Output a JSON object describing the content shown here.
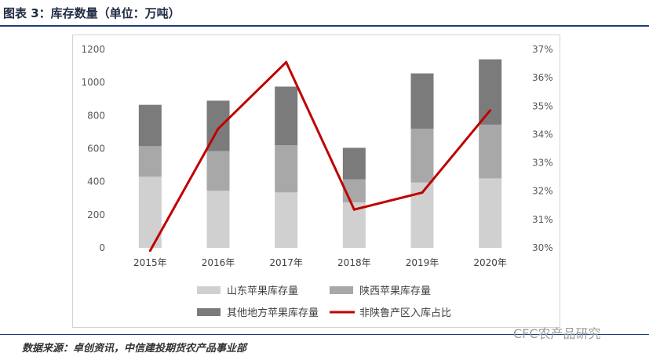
{
  "header": {
    "title": "图表 3：库存数量（单位：万吨）"
  },
  "footer": {
    "source": "数据来源：卓创资讯，中信建投期货农产品事业部",
    "watermark": "CFC农产品研究"
  },
  "colors": {
    "shandong": "#d0d0d0",
    "shaanxi": "#a8a8a8",
    "other": "#7b7b7b",
    "ratio": "#c00000"
  },
  "chart_data": {
    "type": "bar",
    "stacked": true,
    "categories": [
      "2015年",
      "2016年",
      "2017年",
      "2018年",
      "2019年",
      "2020年"
    ],
    "series": [
      {
        "name": "山东苹果库存量",
        "values": [
          430,
          345,
          335,
          275,
          395,
          420
        ]
      },
      {
        "name": "陕西苹果库存量",
        "values": [
          185,
          240,
          285,
          140,
          325,
          325
        ]
      },
      {
        "name": "其他地方苹果库存量",
        "values": [
          250,
          305,
          355,
          190,
          335,
          395
        ]
      }
    ],
    "line_series": {
      "name": "非陕鲁产区入库占比",
      "axis": "right",
      "values": [
        29.9,
        34.2,
        36.55,
        31.35,
        31.95,
        34.85
      ]
    },
    "ylim": [
      0,
      1200
    ],
    "yticks": [
      "0",
      "200",
      "400",
      "600",
      "800",
      "1000",
      "1200"
    ],
    "y2lim": [
      30,
      37
    ],
    "y2ticks": [
      "30%",
      "31%",
      "32%",
      "33%",
      "34%",
      "35%",
      "36%",
      "37%"
    ],
    "legend_position": "bottom",
    "grid": false
  }
}
